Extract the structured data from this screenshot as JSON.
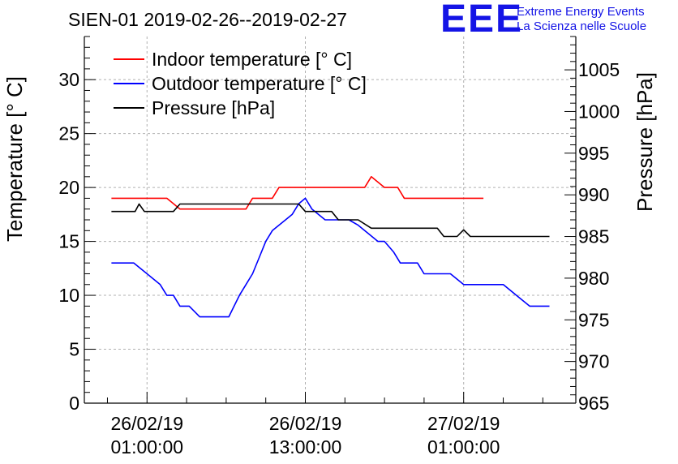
{
  "header": {
    "logo": "EEE",
    "org_line1": "Extreme Energy Events",
    "org_line2": "La Scienza nelle Scuole"
  },
  "chart_data": {
    "type": "line",
    "title": "SIEN-01 2019-02-26--2019-02-27",
    "ylabel": "Temperature [° C]",
    "y2label": "Pressure [hPa]",
    "xlabel": "",
    "ylim": [
      0,
      34
    ],
    "y2lim": [
      965,
      1009
    ],
    "xlim_hours": [
      -4.75,
      32.5
    ],
    "yticks": [
      0,
      5,
      10,
      15,
      20,
      25,
      30
    ],
    "y2ticks": [
      965,
      970,
      975,
      980,
      985,
      990,
      995,
      1000,
      1005
    ],
    "xticks": [
      {
        "hour": 0,
        "date": "26/02/19",
        "time": "01:00:00"
      },
      {
        "hour": 12,
        "date": "26/02/19",
        "time": "13:00:00"
      },
      {
        "hour": 24,
        "date": "27/02/19",
        "time": "01:00:00"
      }
    ],
    "grid": true,
    "legend_position": "top-left",
    "series": [
      {
        "name": "Indoor temperature [° C]",
        "axis": "left",
        "color": "#ff0000",
        "points": [
          [
            -2.7,
            19
          ],
          [
            1.5,
            19
          ],
          [
            2.5,
            18
          ],
          [
            6.0,
            18
          ],
          [
            7.5,
            18
          ],
          [
            8.0,
            19
          ],
          [
            9.5,
            19
          ],
          [
            10.0,
            20
          ],
          [
            13.5,
            20
          ],
          [
            14.5,
            20
          ],
          [
            16.5,
            20
          ],
          [
            17.0,
            21
          ],
          [
            17.5,
            20.5
          ],
          [
            18.0,
            20
          ],
          [
            19.0,
            20
          ],
          [
            19.5,
            19
          ],
          [
            21.5,
            19
          ],
          [
            22.5,
            19
          ],
          [
            25.0,
            19
          ],
          [
            25.5,
            19
          ]
        ]
      },
      {
        "name": "Outdoor temperature [° C]",
        "axis": "left",
        "color": "#0000ff",
        "points": [
          [
            -2.7,
            13
          ],
          [
            -1.0,
            13
          ],
          [
            0.0,
            12
          ],
          [
            1.0,
            11
          ],
          [
            1.5,
            10
          ],
          [
            2.0,
            10
          ],
          [
            2.5,
            9
          ],
          [
            3.0,
            9
          ],
          [
            3.2,
            9
          ],
          [
            4.0,
            8
          ],
          [
            4.8,
            8
          ],
          [
            5.0,
            8
          ],
          [
            6.0,
            8
          ],
          [
            6.2,
            8
          ],
          [
            7.0,
            10
          ],
          [
            7.5,
            11
          ],
          [
            8.0,
            12
          ],
          [
            8.5,
            13.5
          ],
          [
            9.0,
            15
          ],
          [
            9.5,
            16
          ],
          [
            10.5,
            17
          ],
          [
            11.0,
            17.5
          ],
          [
            11.5,
            18.5
          ],
          [
            12.0,
            19
          ],
          [
            12.5,
            18
          ],
          [
            13.5,
            17
          ],
          [
            14.0,
            17
          ],
          [
            15.0,
            17
          ],
          [
            15.3,
            17
          ],
          [
            16.0,
            16.5
          ],
          [
            16.5,
            16
          ],
          [
            17.0,
            15.5
          ],
          [
            17.5,
            15
          ],
          [
            18.0,
            15
          ],
          [
            18.7,
            14
          ],
          [
            19.2,
            13
          ],
          [
            20.5,
            13
          ],
          [
            21.0,
            12
          ],
          [
            23.0,
            12
          ],
          [
            24.0,
            11
          ],
          [
            24.5,
            11
          ],
          [
            25.5,
            11
          ],
          [
            27.0,
            11
          ],
          [
            28.0,
            10
          ],
          [
            29.0,
            9
          ],
          [
            30.0,
            9
          ],
          [
            30.5,
            9
          ]
        ]
      },
      {
        "name": "Pressure [hPa]",
        "axis": "right",
        "color": "#000000",
        "points": [
          [
            -2.7,
            988
          ],
          [
            -0.9,
            988
          ],
          [
            -0.6,
            988.9
          ],
          [
            -0.2,
            988
          ],
          [
            2.0,
            988
          ],
          [
            2.5,
            988.9
          ],
          [
            6.0,
            988.9
          ],
          [
            9.0,
            988.9
          ],
          [
            10.0,
            988.9
          ],
          [
            11.5,
            988.9
          ],
          [
            12.0,
            988
          ],
          [
            14.0,
            988
          ],
          [
            14.5,
            987
          ],
          [
            15.5,
            987
          ],
          [
            16.0,
            987
          ],
          [
            17.0,
            986
          ],
          [
            22.0,
            986
          ],
          [
            22.5,
            985
          ],
          [
            23.0,
            985
          ],
          [
            23.5,
            985
          ],
          [
            24.0,
            985.8
          ],
          [
            24.5,
            985
          ],
          [
            25.5,
            985
          ],
          [
            26.5,
            985
          ],
          [
            27.0,
            985
          ],
          [
            28.0,
            985
          ],
          [
            30.0,
            985
          ],
          [
            30.5,
            985
          ]
        ]
      }
    ]
  }
}
